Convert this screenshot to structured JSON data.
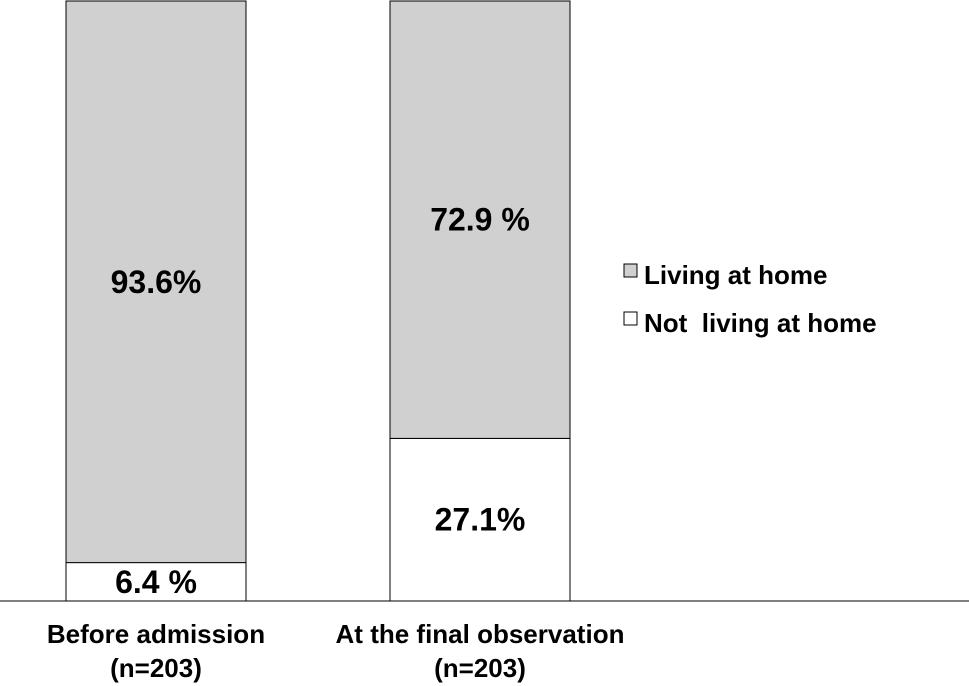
{
  "chart_data": {
    "type": "bar",
    "stacked": true,
    "normalized_percent": true,
    "categories": [
      "Before admission",
      "At the final observation"
    ],
    "category_sublabels": [
      "(n=203)",
      "(n=203)"
    ],
    "series": [
      {
        "name": "Not  living at home",
        "values": [
          6.4,
          27.1
        ],
        "labels": [
          "6.4 %",
          "27.1%"
        ],
        "color": "#ffffff"
      },
      {
        "name": "Living at home",
        "values": [
          93.6,
          72.9
        ],
        "labels": [
          "93.6%",
          "72.9 %"
        ],
        "color": "#d0d0d0"
      }
    ],
    "ylim": [
      0,
      100
    ],
    "legend": {
      "position": "right",
      "order": [
        "Living at home",
        "Not  living at home"
      ]
    },
    "title": "",
    "xlabel": "",
    "ylabel": ""
  }
}
